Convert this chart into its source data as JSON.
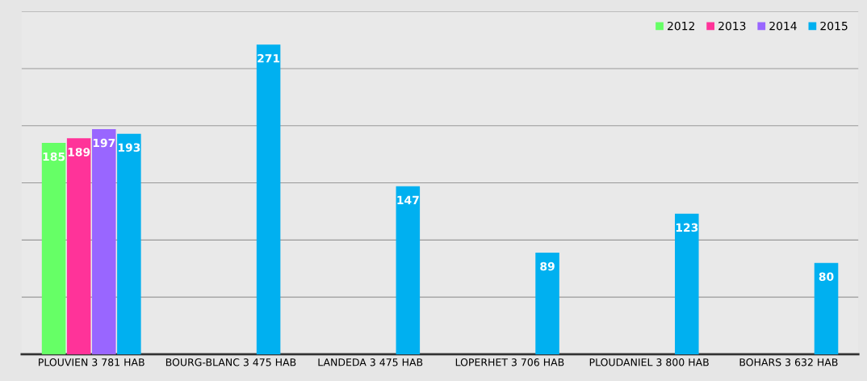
{
  "chart_data": {
    "type": "bar",
    "categories": [
      "PLOUVIEN 3 781 HAB",
      "BOURG-BLANC 3 475 HAB",
      "LANDEDA 3 475 HAB",
      "LOPERHET 3 706 HAB",
      "PLOUDANIEL 3 800 HAB",
      "BOHARS 3 632 HAB"
    ],
    "series": [
      {
        "name": "2012",
        "color": "#66ff66",
        "values": [
          185,
          null,
          null,
          null,
          null,
          null
        ]
      },
      {
        "name": "2013",
        "color": "#ff3399",
        "values": [
          189,
          null,
          null,
          null,
          null,
          null
        ]
      },
      {
        "name": "2014",
        "color": "#9966ff",
        "values": [
          197,
          null,
          null,
          null,
          null,
          null
        ]
      },
      {
        "name": "2015",
        "color": "#00b0f0",
        "values": [
          193,
          271,
          147,
          89,
          123,
          80
        ]
      }
    ],
    "ylim": [
      0,
      300
    ],
    "yticks": [
      {
        "value": 50,
        "label": null
      },
      {
        "value": 100,
        "label": null
      },
      {
        "value": 150,
        "label": null
      },
      {
        "value": 200,
        "label": null
      },
      {
        "value": 250,
        "label": null
      },
      {
        "value": 300,
        "label": null
      }
    ],
    "tick_labels": "x",
    "grid": "y",
    "legend": "top right",
    "data_labels": true
  }
}
